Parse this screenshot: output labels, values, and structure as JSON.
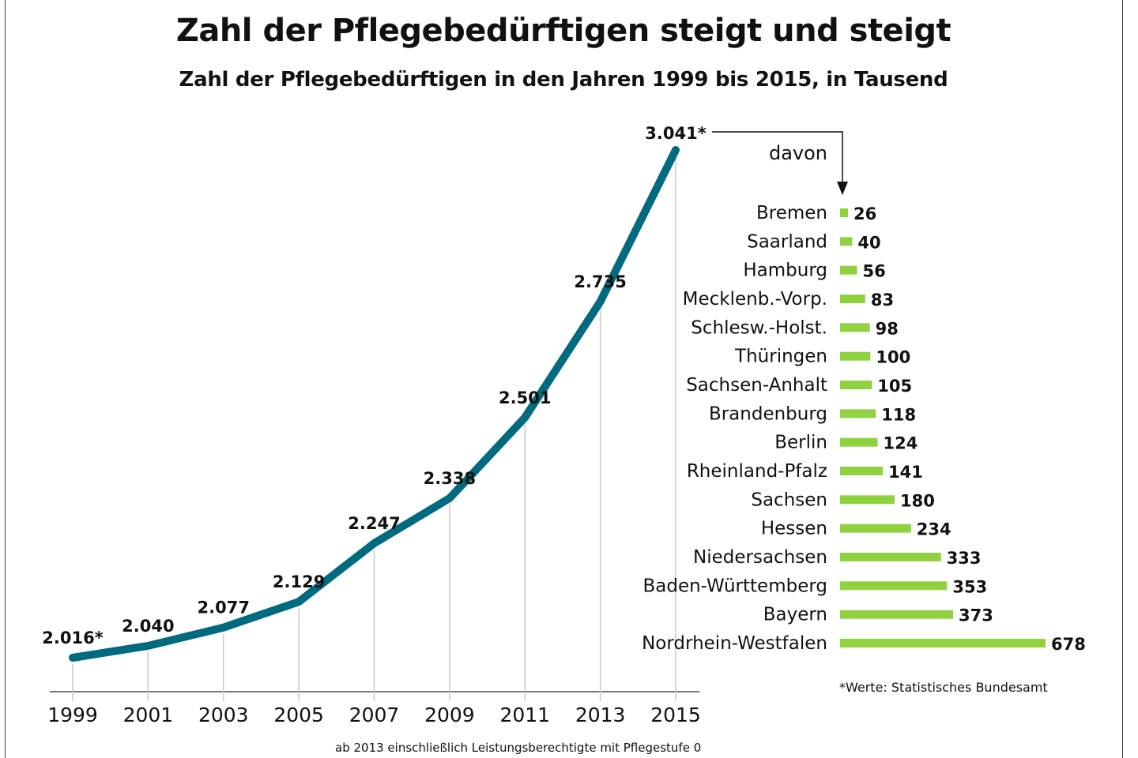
{
  "title": "Zahl der Pflegebedürftigen steigt und steigt",
  "subtitle": "Zahl der Pflegebedürftigen in den Jahren 1999 bis 2015, in Tausend",
  "footnote_source": "*Werte: Statistisches Bundesamt",
  "footnote_note": "ab 2013 einschließlich Leistungsberechtigte mit Pflegestufe 0",
  "chart_data": [
    {
      "type": "line",
      "x": [
        "1999",
        "2001",
        "2003",
        "2005",
        "2007",
        "2009",
        "2011",
        "2013",
        "2015"
      ],
      "series": [
        {
          "values": [
            2016,
            2040,
            2077,
            2129,
            2247,
            2338,
            2501,
            2735,
            3041
          ]
        }
      ],
      "data_labels": [
        "2.016*",
        "2.040",
        "2.077",
        "2.129",
        "2.247",
        "2.338",
        "2.501",
        "2.735",
        "3.041*"
      ],
      "xlabel": "",
      "ylabel": "",
      "grid": "vertical drop lines",
      "line_color": "#006a7f"
    },
    {
      "type": "bar",
      "orientation": "horizontal",
      "header": "davon",
      "categories": [
        "Bremen",
        "Saarland",
        "Hamburg",
        "Mecklenb.-Vorp.",
        "Schlesw.-Holst.",
        "Thüringen",
        "Sachsen-Anhalt",
        "Brandenburg",
        "Berlin",
        "Rheinland-Pfalz",
        "Sachsen",
        "Hessen",
        "Niedersachsen",
        "Baden-Württemberg",
        "Bayern",
        "Nordrhein-Westfalen"
      ],
      "values": [
        26,
        40,
        56,
        83,
        98,
        100,
        105,
        118,
        124,
        141,
        180,
        234,
        333,
        353,
        373,
        678
      ],
      "bar_color": "#8fd13f"
    }
  ]
}
